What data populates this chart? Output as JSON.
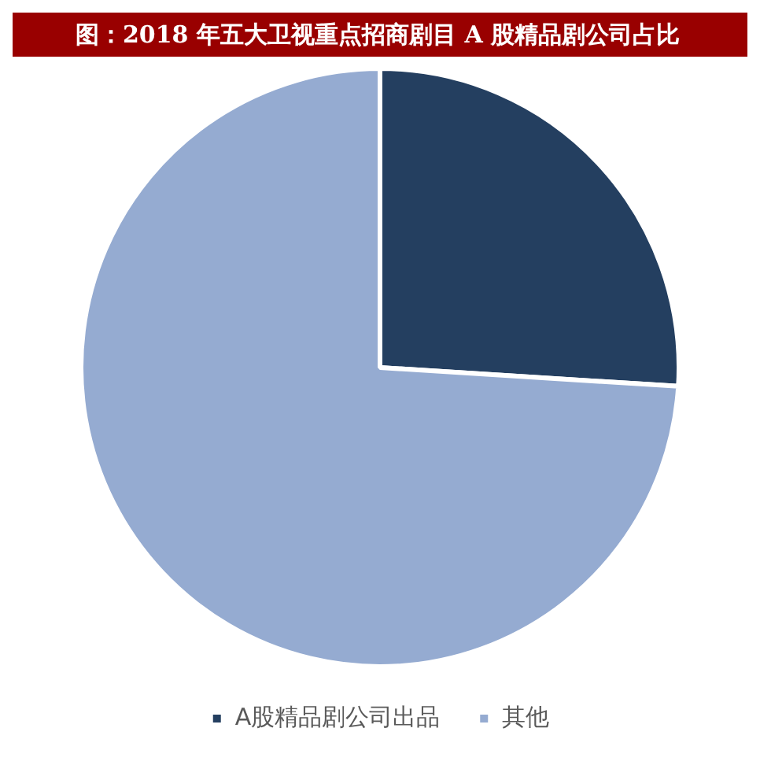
{
  "chart_data": {
    "type": "pie",
    "title": "图：2018 年五大卫视重点招商剧目 A 股精品剧公司占比",
    "categories": [
      "A股精品剧公司出品",
      "其他"
    ],
    "values": [
      26,
      74
    ],
    "colors": [
      "#243f60",
      "#95abd1"
    ],
    "legend": "bottom"
  }
}
